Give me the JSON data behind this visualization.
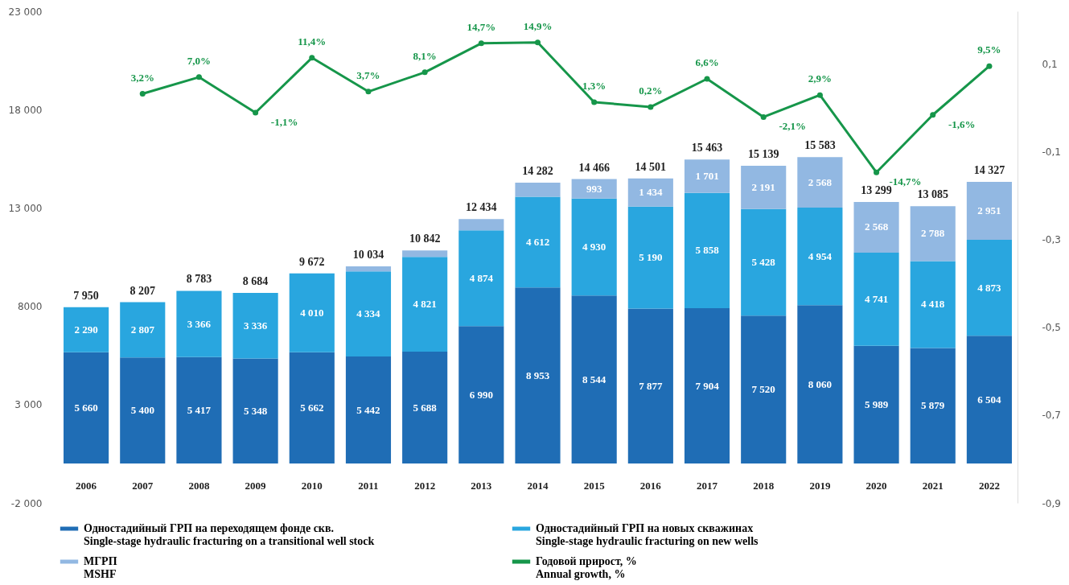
{
  "chart_data": {
    "type": "bar",
    "stacked": true,
    "categories": [
      "2006",
      "2007",
      "2008",
      "2009",
      "2010",
      "2011",
      "2012",
      "2013",
      "2014",
      "2015",
      "2016",
      "2017",
      "2018",
      "2019",
      "2020",
      "2021",
      "2022"
    ],
    "series": [
      {
        "name": "Одностадийный ГРП на переходящем фонде скв.\nSingle-stage hydraulic fracturing on a transitional well stock",
        "color": "#1f6db5",
        "values": [
          5660,
          5400,
          5417,
          5348,
          5662,
          5442,
          5688,
          6990,
          8953,
          8544,
          7877,
          7904,
          7520,
          8060,
          5989,
          5879,
          6504
        ],
        "value_labels": [
          "5 660",
          "5 400",
          "5 417",
          "5 348",
          "5 662",
          "5 442",
          "5 688",
          "6 990",
          "8 953",
          "8 544",
          "7 877",
          "7 904",
          "7 520",
          "8 060",
          "5 989",
          "5 879",
          "6 504"
        ]
      },
      {
        "name": "Одностадийный ГРП на новых скважинах\nSingle-stage hydraulic fracturing on new wells",
        "color": "#29a6df",
        "values": [
          2290,
          2807,
          3366,
          3336,
          4010,
          4334,
          4821,
          4874,
          4612,
          4930,
          5190,
          5858,
          5428,
          4954,
          4741,
          4418,
          4873
        ],
        "value_labels": [
          "2 290",
          "2 807",
          "3 366",
          "3 336",
          "4 010",
          "4 334",
          "4 821",
          "4 874",
          "4 612",
          "4 930",
          "5 190",
          "5 858",
          "5 428",
          "4 954",
          "4 741",
          "4 418",
          "4 873"
        ]
      },
      {
        "name": "МГРП\nMSHF",
        "color": "#92b8e2",
        "values": [
          null,
          null,
          null,
          null,
          null,
          258,
          333,
          570,
          717,
          993,
          1434,
          1701,
          2191,
          2568,
          2568,
          2788,
          2951
        ],
        "value_labels": [
          null,
          null,
          null,
          null,
          null,
          null,
          null,
          null,
          null,
          "993",
          "1 434",
          "1 701",
          "2 191",
          "2 568",
          "2 568",
          "2 788",
          "2 951"
        ]
      },
      {
        "name": "Годовой прирост, %\nAnnual growth, %",
        "type": "line",
        "axis": "y2",
        "color": "#16964a",
        "marker": "circle",
        "values": [
          null,
          0.032,
          0.07,
          -0.011,
          0.114,
          0.037,
          0.081,
          0.147,
          0.149,
          0.013,
          0.002,
          0.066,
          -0.021,
          0.029,
          -0.147,
          -0.016,
          0.095
        ],
        "value_labels": [
          null,
          "3,2%",
          "7,0%",
          "-1,1%",
          "11,4%",
          "3,7%",
          "8,1%",
          "14,7%",
          "14,9%",
          "1,3%",
          "0,2%",
          "6,6%",
          "-2,1%",
          "2,9%",
          "-14,7%",
          "-1,6%",
          "9,5%"
        ]
      }
    ],
    "totals": [
      "7 950",
      "8 207",
      "8 783",
      "8 684",
      "9 672",
      "10 034",
      "10 842",
      "12 434",
      "14 282",
      "14 466",
      "14 501",
      "15 463",
      "15 139",
      "15 583",
      "13 299",
      "13 085",
      "14 327"
    ],
    "ylim": [
      -2000,
      23000
    ],
    "yticks": [
      {
        "value": -2000,
        "label": "-2 000"
      },
      {
        "value": 3000,
        "label": "3 000"
      },
      {
        "value": 8000,
        "label": "8000"
      },
      {
        "value": 13000,
        "label": "13 000"
      },
      {
        "value": 18000,
        "label": "18 000"
      },
      {
        "value": 23000,
        "label": "23 000"
      }
    ],
    "y2lim": [
      -0.9,
      0.22
    ],
    "y2ticks": [
      {
        "value": -0.9,
        "label": "-0,9"
      },
      {
        "value": -0.7,
        "label": "-0,7"
      },
      {
        "value": -0.5,
        "label": "-0,5"
      },
      {
        "value": -0.3,
        "label": "-0,3"
      },
      {
        "value": -0.1,
        "label": "-0,1"
      },
      {
        "value": 0.1,
        "label": "0,1"
      }
    ],
    "grid": false,
    "legend": "bottom"
  }
}
